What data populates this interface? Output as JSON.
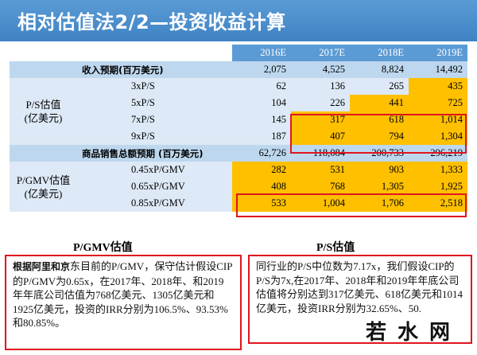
{
  "title": "相对估值法2/2—投资收益计算",
  "years": [
    "2016E",
    "2017E",
    "2018E",
    "2019E"
  ],
  "revenue": {
    "label": "收入预期(百万美元)",
    "values": [
      "2,075",
      "4,525",
      "8,824",
      "14,492"
    ]
  },
  "ps": {
    "group_label_1": "P/S估值",
    "group_label_2": "(亿美元)",
    "rows": [
      {
        "label": "3xP/S",
        "values": [
          "62",
          "136",
          "265",
          "435"
        ]
      },
      {
        "label": "5xP/S",
        "values": [
          "104",
          "226",
          "441",
          "725"
        ]
      },
      {
        "label": "7xP/S",
        "values": [
          "145",
          "317",
          "618",
          "1,014"
        ]
      },
      {
        "label": "9xP/S",
        "values": [
          "187",
          "407",
          "794",
          "1,304"
        ]
      }
    ]
  },
  "gmv": {
    "label": "商品销售总额预期 (百万美元)",
    "values": [
      "62,726",
      "118,084",
      "200,733",
      "296,219"
    ]
  },
  "pgmv": {
    "group_label_1": "P/GMV估值",
    "group_label_2": "(亿美元)",
    "rows": [
      {
        "label": "0.45xP/GMV",
        "values": [
          "282",
          "531",
          "903",
          "1,333"
        ]
      },
      {
        "label": "0.65xP/GMV",
        "values": [
          "408",
          "768",
          "1,305",
          "1,925"
        ]
      },
      {
        "label": "0.85xP/GMV",
        "values": [
          "533",
          "1,004",
          "1,706",
          "2,518"
        ]
      }
    ]
  },
  "captions": {
    "left": "P/GMV估值",
    "right": "P/S估值"
  },
  "notes": {
    "left_bold": "根据阿里和京",
    "left_text": "东目前的P/GMV，保守估计假设CIP的P/GMV为0.65x，在2017年、2018年、和2019年年底公司估值为768亿美元、1305亿美元和1925亿美元，投资的IRR分别为106.5%、93.53%和80.85%。",
    "right_text": "同行业的P/S中位数为7.17x，我们假设CIP的P/S为7x,在2017年、2018年和2019年年底公司估值将分别达到317亿美元、618亿美元和1014亿美元，投资IRR分别为32.65%、50."
  },
  "watermark": "若水网"
}
